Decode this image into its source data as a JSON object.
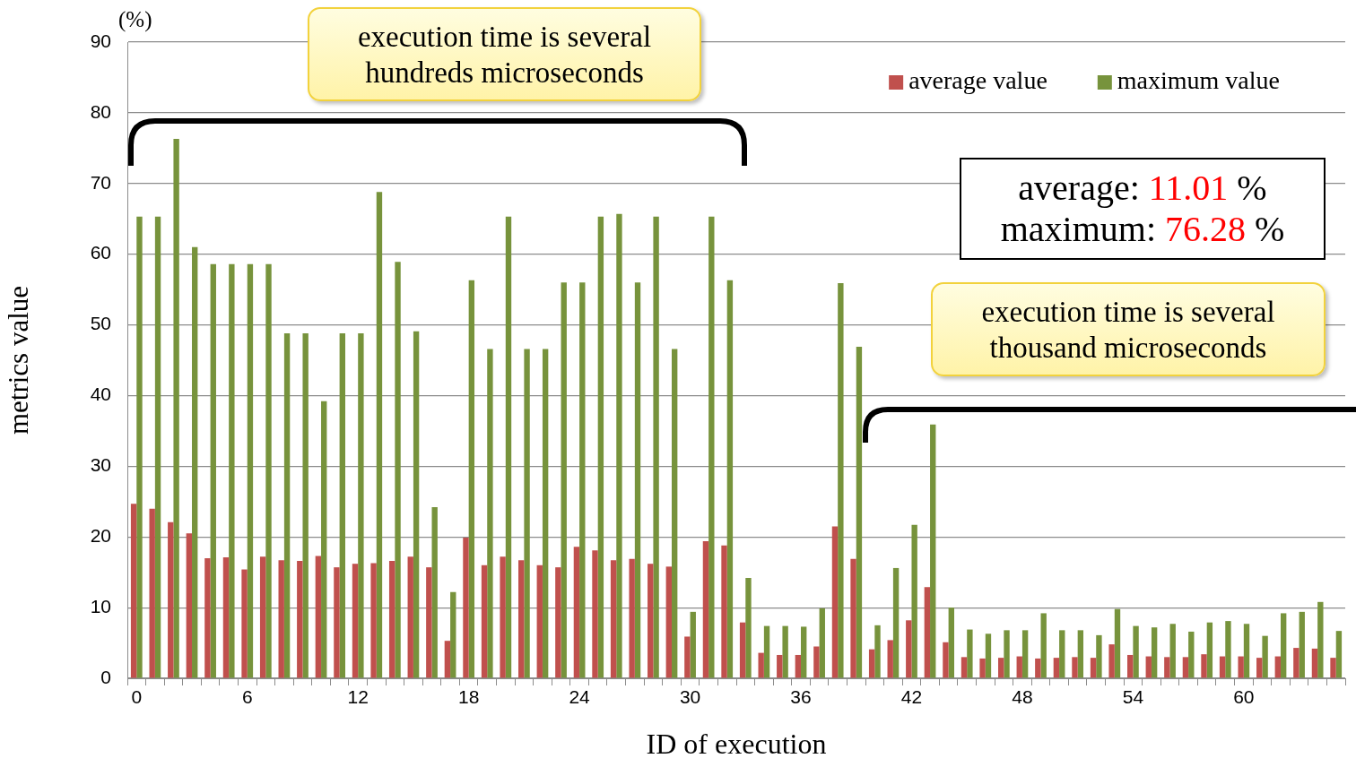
{
  "chart_data": {
    "type": "bar",
    "xlabel": "ID of execution",
    "ylabel": "metrics value",
    "categories": [
      "0",
      null,
      null,
      null,
      null,
      null,
      "6",
      null,
      null,
      null,
      null,
      null,
      "12",
      null,
      null,
      null,
      null,
      null,
      "18",
      null,
      null,
      null,
      null,
      null,
      "24",
      null,
      null,
      null,
      null,
      null,
      "30",
      null,
      null,
      null,
      null,
      null,
      "36",
      null,
      null,
      null,
      null,
      null,
      "42",
      null,
      null,
      null,
      null,
      null,
      "48",
      null,
      null,
      null,
      null,
      null,
      "54",
      null,
      null,
      null,
      null,
      null,
      "60",
      null,
      null,
      null,
      null,
      null
    ],
    "series": [
      {
        "name": "average value",
        "color": "#c0504d",
        "values": [
          24.7,
          24.0,
          22.1,
          20.5,
          17.0,
          17.1,
          15.4,
          17.2,
          16.7,
          16.6,
          17.3,
          15.7,
          16.2,
          16.3,
          16.6,
          17.2,
          15.7,
          5.3,
          19.9,
          16.0,
          17.2,
          16.7,
          16.0,
          15.7,
          18.6,
          18.1,
          16.7,
          16.9,
          16.2,
          15.8,
          5.9,
          19.4,
          18.8,
          7.9,
          3.6,
          3.3,
          3.3,
          4.5,
          21.5,
          16.9,
          4.1,
          5.4,
          8.2,
          12.9,
          5.1,
          3.0,
          2.8,
          2.9,
          3.1,
          2.8,
          2.9,
          3.0,
          2.9,
          4.8,
          3.3,
          3.1,
          3.0,
          3.0,
          3.4,
          3.1,
          3.1,
          2.9,
          3.1,
          4.3,
          4.2,
          2.9
        ]
      },
      {
        "name": "maximum value",
        "color": "#77933c",
        "values": [
          65.3,
          65.3,
          76.3,
          61.0,
          58.6,
          58.6,
          58.6,
          58.6,
          48.8,
          48.8,
          39.2,
          48.8,
          48.8,
          68.8,
          58.9,
          49.1,
          24.2,
          12.2,
          56.3,
          46.6,
          65.3,
          46.6,
          46.6,
          56.0,
          56.0,
          65.3,
          65.7,
          56.0,
          65.3,
          46.6,
          9.4,
          65.3,
          56.3,
          14.2,
          7.4,
          7.4,
          7.3,
          9.9,
          55.9,
          46.9,
          7.5,
          15.6,
          21.7,
          35.9,
          10.0,
          6.9,
          6.3,
          6.8,
          6.8,
          9.2,
          6.8,
          6.8,
          6.1,
          9.8,
          7.4,
          7.2,
          7.7,
          6.6,
          7.9,
          8.1,
          7.7,
          6.0,
          9.2,
          9.4,
          10.8,
          6.7
        ]
      }
    ],
    "ylim": [
      0,
      90
    ],
    "yticks": [
      0,
      10,
      20,
      30,
      40,
      50,
      60,
      70,
      80,
      90
    ],
    "grid": "y",
    "legend": "top right",
    "annotations": [
      "execution time is several hundreds microseconds",
      "execution time is several thousand microseconds",
      "average: 11.01 %",
      "maximum: 76.28 %",
      "(%)"
    ]
  }
}
